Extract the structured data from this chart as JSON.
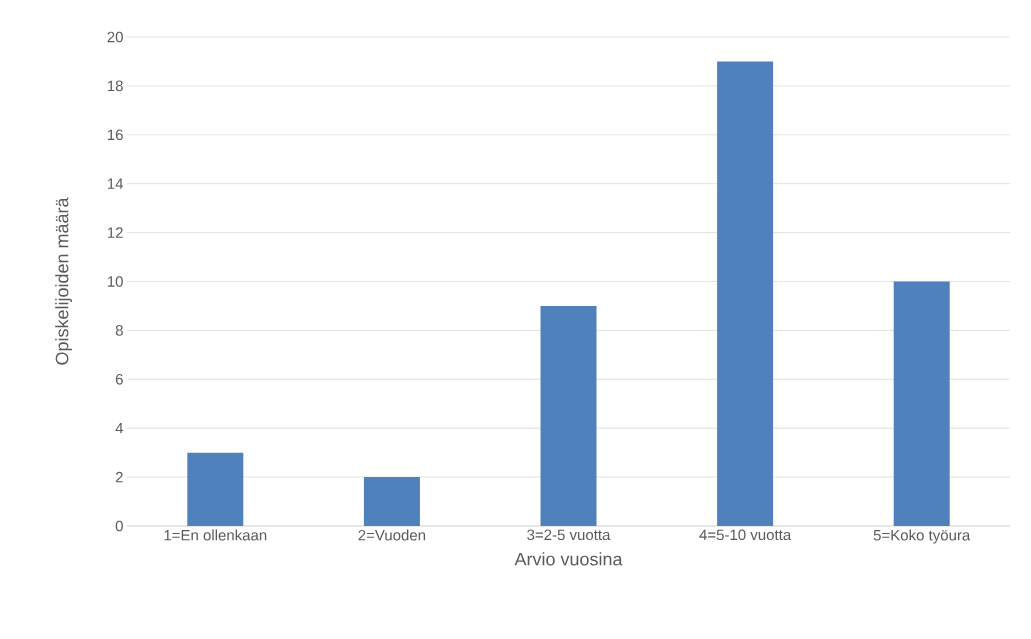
{
  "chart_data": {
    "type": "bar",
    "xlabel": "Arvio vuosina",
    "ylabel": "Opiskelijoiden määrä",
    "categories": [
      "1=En ollenkaan",
      "2=Vuoden",
      "3=2-5 vuotta",
      "4=5-10 vuotta",
      "5=Koko työura"
    ],
    "values": [
      3,
      2,
      9,
      19,
      10
    ],
    "color": "#4f81bd",
    "ylim": [
      0,
      20
    ],
    "yticks": [
      0,
      2,
      4,
      6,
      8,
      10,
      12,
      14,
      16,
      18,
      20
    ],
    "grid": "y"
  }
}
